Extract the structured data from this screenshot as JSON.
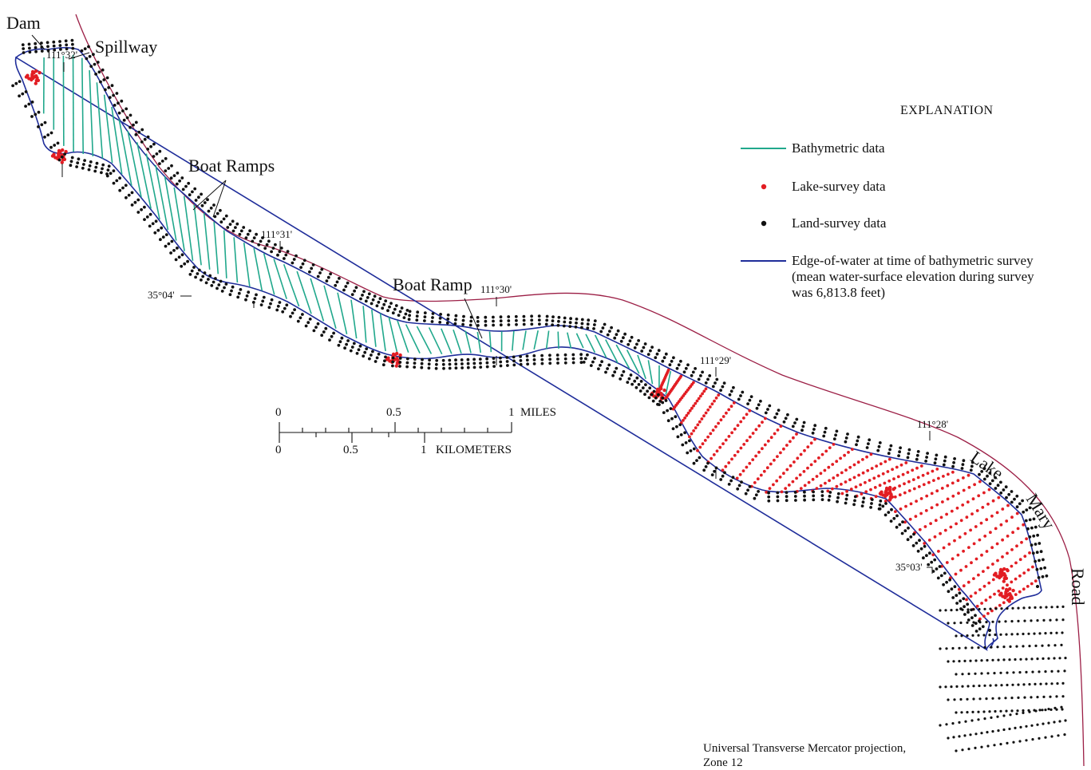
{
  "labels": {
    "dam": "Dam",
    "spillway": "Spillway",
    "boat_ramps": "Boat Ramps",
    "boat_ramp": "Boat Ramp",
    "road": [
      "Lake",
      "Mary",
      "Road"
    ]
  },
  "coordinates": {
    "lon_32": "111°32'",
    "lon_31": "111°31'",
    "lon_30": "111°30'",
    "lon_29": "111°29'",
    "lon_28": "111°28'",
    "lat_04": "35°04'",
    "lat_03": "35°03'"
  },
  "scale_bar": {
    "miles": [
      "0",
      "0.5",
      "1",
      "MILES"
    ],
    "kilometers": [
      "0",
      "0.5",
      "1",
      "KILOMETERS"
    ]
  },
  "legend": {
    "title": "EXPLANATION",
    "items": [
      {
        "symbol": "line",
        "color": "#21a88c",
        "label": "Bathymetric data"
      },
      {
        "symbol": "dot",
        "color": "#e21d23",
        "label": "Lake-survey data"
      },
      {
        "symbol": "dot",
        "color": "#111111",
        "label": "Land-survey data"
      },
      {
        "symbol": "line",
        "color": "#1f2d9a",
        "label": "Edge-of-water at time of bathymetric survey",
        "line2": "(mean water-surface elevation during survey",
        "line3": "was 6,813.8 feet)"
      }
    ]
  },
  "projection": [
    "Universal Transverse Mercator projection,",
    "Zone 12"
  ],
  "colors": {
    "road": "#9c1f46",
    "shoreline": "#1f2d9a",
    "bathymetric": "#21a88c",
    "lake_survey": "#e21d23",
    "land_survey": "#111111"
  }
}
